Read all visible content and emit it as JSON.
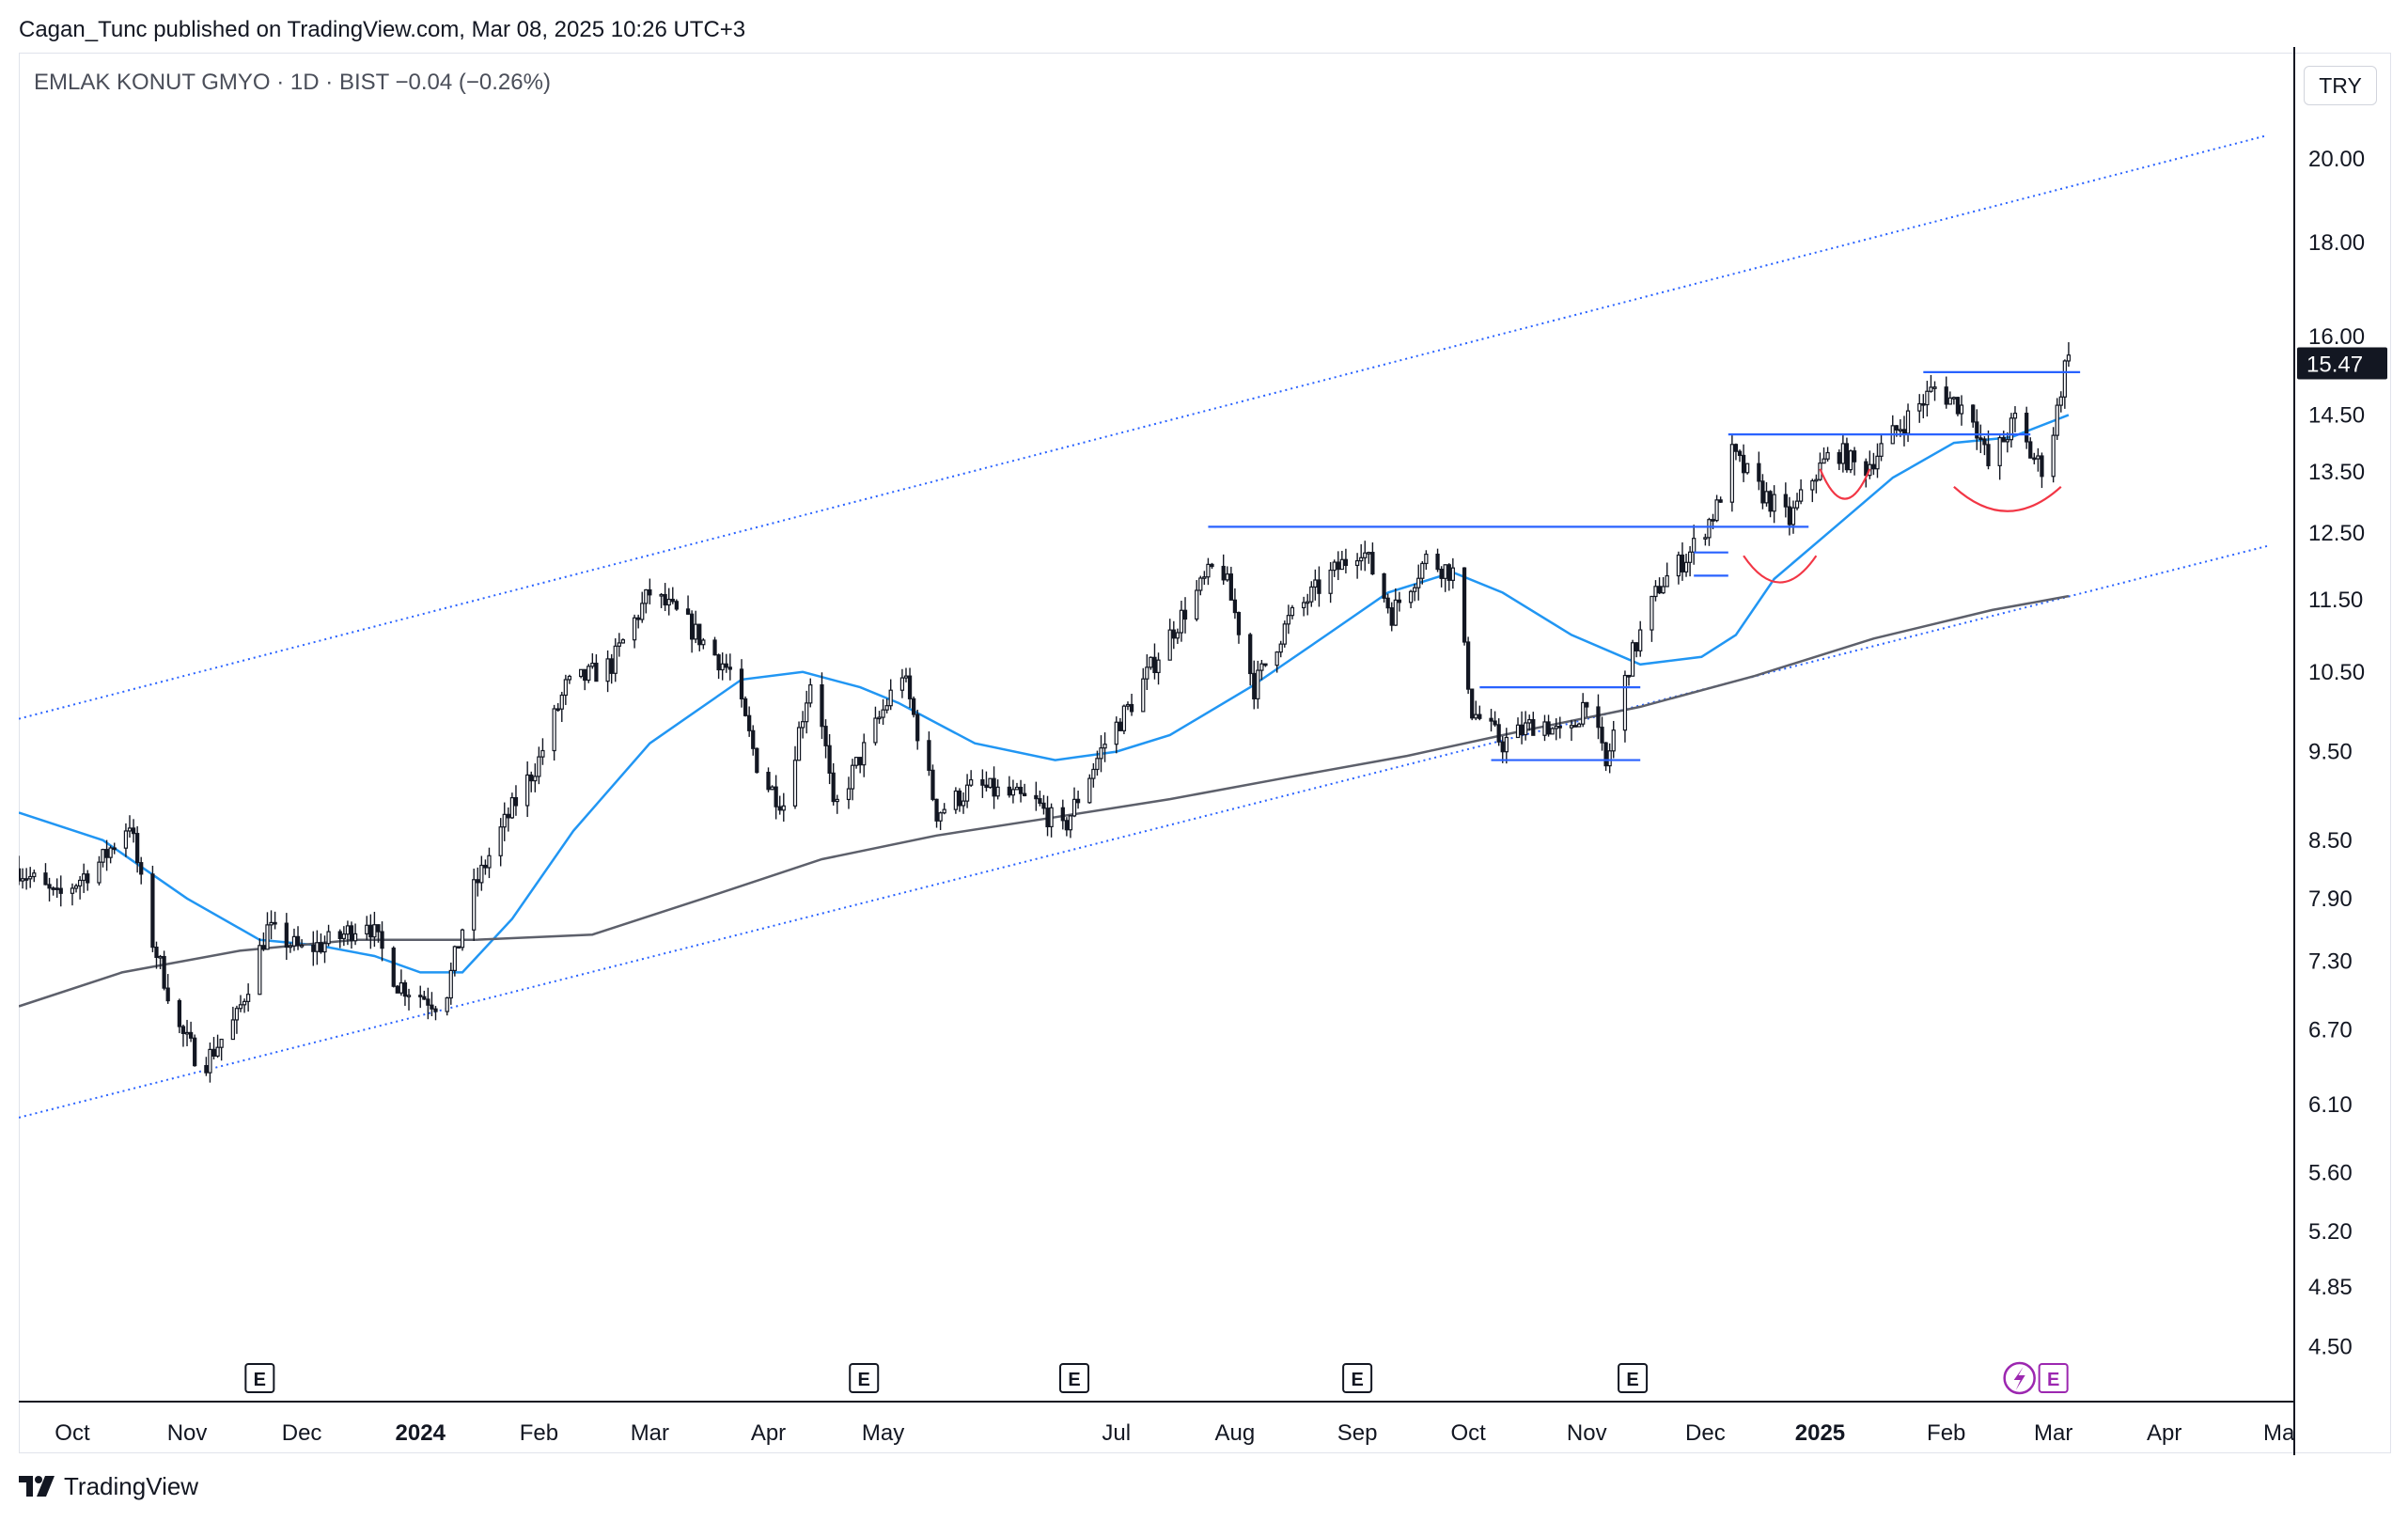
{
  "header": {
    "publisher": "Cagan_Tunc published on TradingView.com, Mar 08, 2025 10:26 UTC+3",
    "symbol": "EMLAK KONUT GMYO · 1D · BIST  −0.04 (−0.26%)",
    "currency": "TRY"
  },
  "footer": {
    "brand": "TradingView"
  },
  "colors": {
    "candle": "#131722",
    "ma_fast": "#2196f3",
    "ma_slow": "#5d606b",
    "channel": "#2962ff",
    "level": "#2962ff",
    "arc": "#f23645",
    "price_tag_bg": "#131722",
    "event_alt": "#9c27b0"
  },
  "chart_data": {
    "type": "candlestick",
    "symbol": "EMLAK KONUT GMYO",
    "interval": "1D",
    "exchange": "BIST",
    "change": "−0.04 (−0.26%)",
    "last_price": 15.47,
    "last_price_label": "15.47",
    "y_scale": "log",
    "y_range": [
      4.2,
      22.8
    ],
    "x_range": [
      "2023-09-18",
      "2025-05-05"
    ],
    "y_ticks": [
      "20.00",
      "18.00",
      "16.00",
      "14.50",
      "13.50",
      "12.50",
      "11.50",
      "10.50",
      "9.50",
      "8.50",
      "7.90",
      "7.30",
      "6.70",
      "6.10",
      "5.60",
      "5.20",
      "4.85",
      "4.50"
    ],
    "x_ticks": [
      {
        "label": "Oct",
        "date": "2023-10-02"
      },
      {
        "label": "Nov",
        "date": "2023-11-01"
      },
      {
        "label": "Dec",
        "date": "2023-12-01"
      },
      {
        "label": "2024",
        "date": "2024-01-01",
        "bold": true
      },
      {
        "label": "Feb",
        "date": "2024-02-01"
      },
      {
        "label": "Mar",
        "date": "2024-03-01"
      },
      {
        "label": "Apr",
        "date": "2024-04-01"
      },
      {
        "label": "May",
        "date": "2024-05-01"
      },
      {
        "label": "Jul",
        "date": "2024-07-01"
      },
      {
        "label": "Aug",
        "date": "2024-08-01"
      },
      {
        "label": "Sep",
        "date": "2024-09-02"
      },
      {
        "label": "Oct",
        "date": "2024-10-01"
      },
      {
        "label": "Nov",
        "date": "2024-11-01"
      },
      {
        "label": "Dec",
        "date": "2024-12-02"
      },
      {
        "label": "2025",
        "date": "2025-01-01",
        "bold": true
      },
      {
        "label": "Feb",
        "date": "2025-02-03"
      },
      {
        "label": "Mar",
        "date": "2025-03-03"
      },
      {
        "label": "Apr",
        "date": "2025-04-01"
      },
      {
        "label": "Ma",
        "date": "2025-05-01"
      }
    ],
    "price_path": [
      [
        "2023-09-18",
        8.2
      ],
      [
        "2023-09-28",
        7.9
      ],
      [
        "2023-10-10",
        8.3
      ],
      [
        "2023-10-17",
        8.7
      ],
      [
        "2023-10-22",
        7.6
      ],
      [
        "2023-10-30",
        6.7
      ],
      [
        "2023-11-05",
        6.4
      ],
      [
        "2023-11-14",
        6.8
      ],
      [
        "2023-11-22",
        7.6
      ],
      [
        "2023-12-01",
        7.4
      ],
      [
        "2023-12-10",
        7.5
      ],
      [
        "2023-12-18",
        7.7
      ],
      [
        "2023-12-26",
        7.1
      ],
      [
        "2024-01-07",
        6.9
      ],
      [
        "2024-01-14",
        7.9
      ],
      [
        "2024-01-22",
        8.6
      ],
      [
        "2024-02-01",
        9.4
      ],
      [
        "2024-02-08",
        10.3
      ],
      [
        "2024-02-20",
        10.6
      ],
      [
        "2024-03-01",
        11.6
      ],
      [
        "2024-03-10",
        11.2
      ],
      [
        "2024-03-22",
        10.5
      ],
      [
        "2024-03-30",
        9.2
      ],
      [
        "2024-04-05",
        8.9
      ],
      [
        "2024-04-13",
        10.6
      ],
      [
        "2024-04-18",
        8.8
      ],
      [
        "2024-04-28",
        9.7
      ],
      [
        "2024-05-06",
        10.5
      ],
      [
        "2024-05-15",
        8.8
      ],
      [
        "2024-05-25",
        9.1
      ],
      [
        "2024-06-10",
        8.9
      ],
      [
        "2024-06-17",
        8.6
      ],
      [
        "2024-06-28",
        9.6
      ],
      [
        "2024-07-05",
        10.1
      ],
      [
        "2024-07-15",
        11.0
      ],
      [
        "2024-07-28",
        12.1
      ],
      [
        "2024-08-06",
        10.3
      ],
      [
        "2024-08-15",
        11.2
      ],
      [
        "2024-08-25",
        11.8
      ],
      [
        "2024-09-03",
        12.3
      ],
      [
        "2024-09-11",
        11.3
      ],
      [
        "2024-09-20",
        12.1
      ],
      [
        "2024-09-27",
        11.9
      ],
      [
        "2024-10-02",
        10.0
      ],
      [
        "2024-10-10",
        9.6
      ],
      [
        "2024-10-20",
        9.9
      ],
      [
        "2024-10-27",
        9.6
      ],
      [
        "2024-11-01",
        10.2
      ],
      [
        "2024-11-06",
        9.3
      ],
      [
        "2024-11-12",
        10.6
      ],
      [
        "2024-11-20",
        11.7
      ],
      [
        "2024-11-28",
        12.2
      ],
      [
        "2024-12-05",
        12.9
      ],
      [
        "2024-12-09",
        13.8
      ],
      [
        "2024-12-16",
        13.2
      ],
      [
        "2024-12-24",
        12.7
      ],
      [
        "2024-12-30",
        13.4
      ],
      [
        "2025-01-05",
        13.9
      ],
      [
        "2025-01-12",
        13.5
      ],
      [
        "2025-01-22",
        14.3
      ],
      [
        "2025-01-31",
        15.0
      ],
      [
        "2025-02-10",
        14.5
      ],
      [
        "2025-02-14",
        13.6
      ],
      [
        "2025-02-21",
        14.4
      ],
      [
        "2025-02-25",
        13.8
      ],
      [
        "2025-03-01",
        13.5
      ],
      [
        "2025-03-04",
        14.6
      ],
      [
        "2025-03-07",
        15.8
      ]
    ],
    "series": [
      {
        "name": "ma_fast",
        "points": [
          [
            "2023-09-18",
            8.8
          ],
          [
            "2023-10-10",
            8.5
          ],
          [
            "2023-11-01",
            7.9
          ],
          [
            "2023-11-20",
            7.5
          ],
          [
            "2023-12-05",
            7.45
          ],
          [
            "2023-12-20",
            7.35
          ],
          [
            "2024-01-01",
            7.2
          ],
          [
            "2024-01-12",
            7.2
          ],
          [
            "2024-01-25",
            7.7
          ],
          [
            "2024-02-10",
            8.6
          ],
          [
            "2024-03-01",
            9.6
          ],
          [
            "2024-03-25",
            10.4
          ],
          [
            "2024-04-10",
            10.5
          ],
          [
            "2024-04-25",
            10.3
          ],
          [
            "2024-05-05",
            10.1
          ],
          [
            "2024-05-25",
            9.6
          ],
          [
            "2024-06-15",
            9.4
          ],
          [
            "2024-07-01",
            9.5
          ],
          [
            "2024-07-15",
            9.7
          ],
          [
            "2024-08-05",
            10.3
          ],
          [
            "2024-08-25",
            11.0
          ],
          [
            "2024-09-10",
            11.6
          ],
          [
            "2024-09-27",
            11.9
          ],
          [
            "2024-10-10",
            11.6
          ],
          [
            "2024-10-28",
            11.0
          ],
          [
            "2024-11-15",
            10.6
          ],
          [
            "2024-12-01",
            10.7
          ],
          [
            "2024-12-10",
            11.0
          ],
          [
            "2024-12-20",
            11.8
          ],
          [
            "2025-01-05",
            12.6
          ],
          [
            "2025-01-20",
            13.4
          ],
          [
            "2025-02-05",
            14.0
          ],
          [
            "2025-02-20",
            14.1
          ],
          [
            "2025-03-07",
            14.5
          ]
        ]
      },
      {
        "name": "ma_slow",
        "points": [
          [
            "2023-09-18",
            6.9
          ],
          [
            "2023-10-15",
            7.2
          ],
          [
            "2023-11-15",
            7.4
          ],
          [
            "2023-12-15",
            7.5
          ],
          [
            "2024-01-15",
            7.5
          ],
          [
            "2024-02-15",
            7.55
          ],
          [
            "2024-03-15",
            7.9
          ],
          [
            "2024-04-15",
            8.3
          ],
          [
            "2024-05-15",
            8.55
          ],
          [
            "2024-06-15",
            8.75
          ],
          [
            "2024-07-15",
            8.95
          ],
          [
            "2024-08-15",
            9.2
          ],
          [
            "2024-09-15",
            9.45
          ],
          [
            "2024-10-15",
            9.75
          ],
          [
            "2024-11-15",
            10.05
          ],
          [
            "2024-12-15",
            10.45
          ],
          [
            "2025-01-15",
            10.95
          ],
          [
            "2025-02-15",
            11.35
          ],
          [
            "2025-03-07",
            11.55
          ]
        ]
      }
    ],
    "channel": [
      {
        "name": "upper",
        "from": [
          "2023-09-18",
          9.9
        ],
        "to": [
          "2025-04-28",
          20.6
        ]
      },
      {
        "name": "lower",
        "from": [
          "2023-09-18",
          6.0
        ],
        "to": [
          "2025-04-28",
          12.3
        ]
      }
    ],
    "levels": [
      {
        "price": 12.6,
        "from": "2024-07-25",
        "to": "2024-12-29"
      },
      {
        "price": 14.15,
        "from": "2024-12-08",
        "to": "2025-02-25"
      },
      {
        "price": 15.3,
        "from": "2025-01-28",
        "to": "2025-03-10"
      },
      {
        "price": 10.3,
        "from": "2024-10-04",
        "to": "2024-11-15"
      },
      {
        "price": 9.4,
        "from": "2024-10-07",
        "to": "2024-11-15"
      },
      {
        "price": 12.2,
        "from": "2024-11-29",
        "to": "2024-12-08"
      },
      {
        "price": 11.85,
        "from": "2024-11-29",
        "to": "2024-12-08"
      }
    ],
    "arcs": [
      {
        "from": "2024-12-12",
        "to": "2024-12-31",
        "y_edge": 12.15,
        "y_bottom": 11.75
      },
      {
        "from": "2025-01-01",
        "to": "2025-01-14",
        "y_edge": 13.55,
        "y_bottom": 13.05
      },
      {
        "from": "2025-02-05",
        "to": "2025-03-05",
        "y_edge": 13.25,
        "y_bottom": 12.85
      }
    ],
    "events": [
      {
        "label": "E",
        "date": "2023-11-20"
      },
      {
        "label": "E",
        "date": "2024-04-26"
      },
      {
        "label": "E",
        "date": "2024-06-20"
      },
      {
        "label": "E",
        "date": "2024-09-02"
      },
      {
        "label": "E",
        "date": "2024-11-13"
      },
      {
        "label": "E",
        "date": "2025-03-03",
        "alt": true
      }
    ]
  }
}
